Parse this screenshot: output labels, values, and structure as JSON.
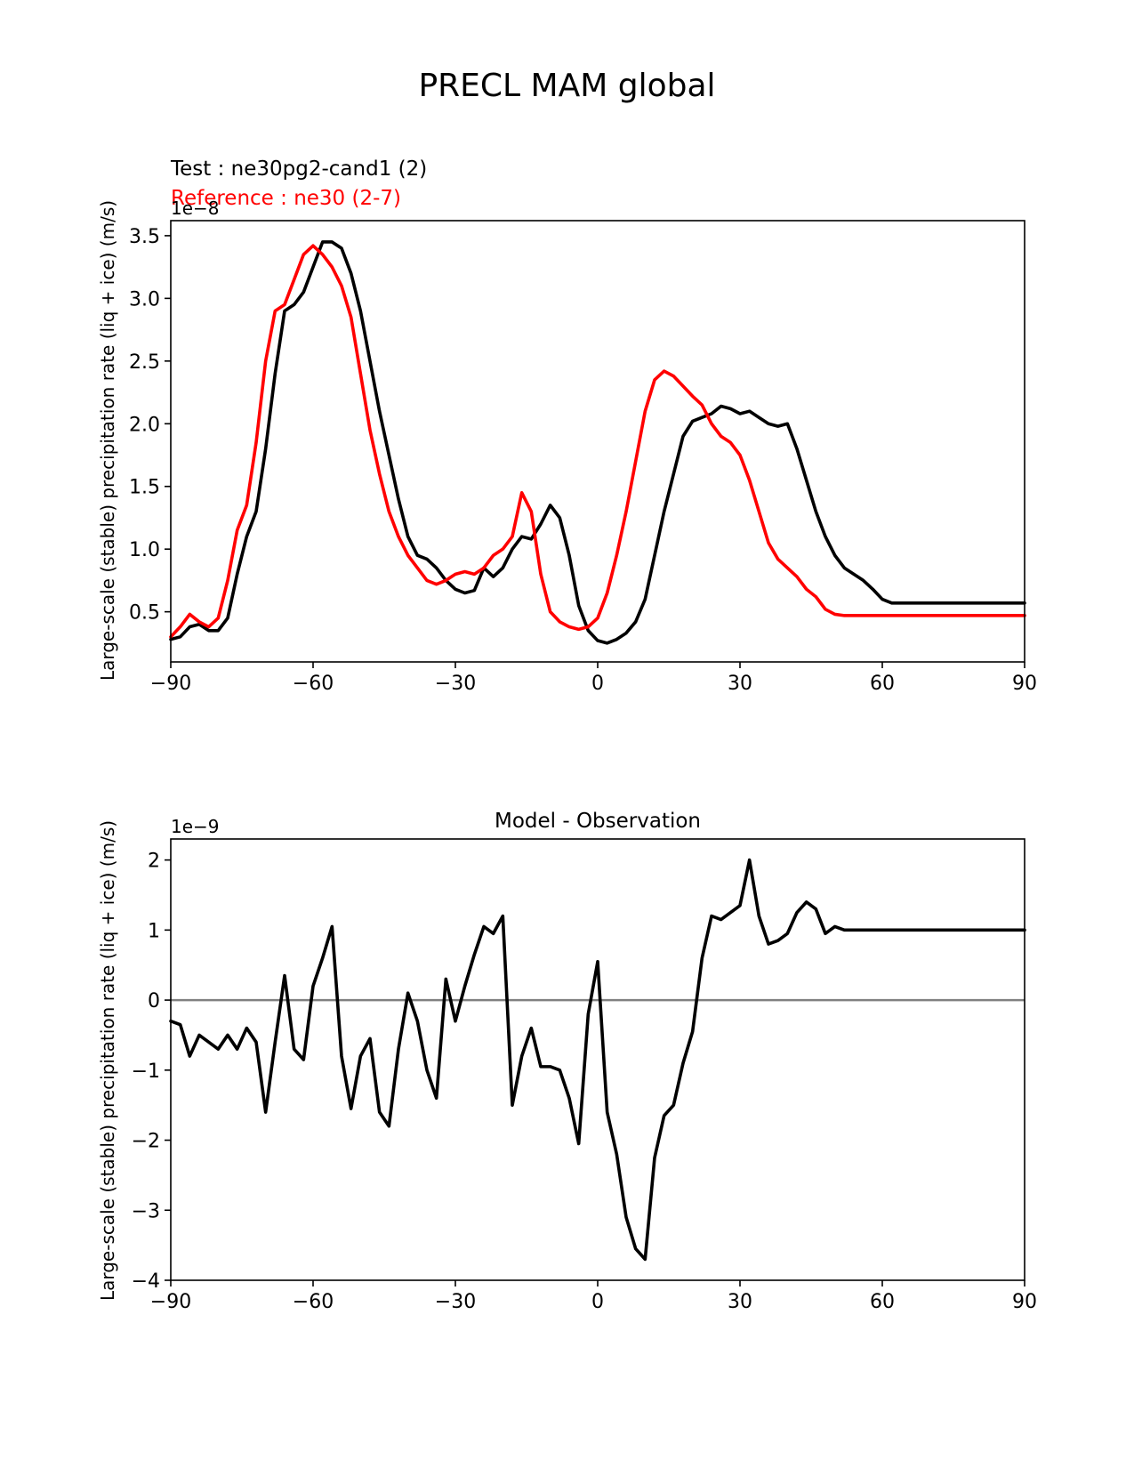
{
  "figure": {
    "title": "PRECL MAM global"
  },
  "chart_data": [
    {
      "type": "line",
      "legend_test": "Test : ne30pg2-cand1 (2)",
      "legend_ref": "Reference : ne30 (2-7)",
      "ylabel": "Large-scale (stable) precipitation rate (liq + ice) (m/s)",
      "offset_label": "1e−8",
      "xlim": [
        -90,
        90
      ],
      "ylim": [
        0.1,
        3.62
      ],
      "xticks": [
        -90,
        -60,
        -30,
        0,
        30,
        60,
        90
      ],
      "xtick_labels": [
        "−90",
        "−60",
        "−30",
        "0",
        "30",
        "60",
        "90"
      ],
      "yticks": [
        0.5,
        1.0,
        1.5,
        2.0,
        2.5,
        3.0,
        3.5
      ],
      "ytick_labels": [
        "0.5",
        "1.0",
        "1.5",
        "2.0",
        "2.5",
        "3.0",
        "3.5"
      ],
      "series": [
        {
          "name": "Test : ne30pg2-cand1 (2)",
          "color": "#000000",
          "x": [
            -90,
            -88,
            -86,
            -84,
            -82,
            -80,
            -78,
            -76,
            -74,
            -72,
            -70,
            -68,
            -66,
            -64,
            -62,
            -60,
            -58,
            -56,
            -54,
            -52,
            -50,
            -48,
            -46,
            -44,
            -42,
            -40,
            -38,
            -36,
            -34,
            -32,
            -30,
            -28,
            -26,
            -24,
            -22,
            -20,
            -18,
            -16,
            -14,
            -12,
            -10,
            -8,
            -6,
            -4,
            -2,
            0,
            2,
            4,
            6,
            8,
            10,
            12,
            14,
            16,
            18,
            20,
            22,
            24,
            26,
            28,
            30,
            32,
            34,
            36,
            38,
            40,
            42,
            44,
            46,
            48,
            50,
            52,
            54,
            56,
            58,
            60,
            62,
            64,
            66,
            68,
            70,
            72,
            74,
            76,
            78,
            80,
            82,
            84,
            86,
            88,
            90
          ],
          "y": [
            0.28,
            0.3,
            0.38,
            0.4,
            0.35,
            0.35,
            0.45,
            0.8,
            1.1,
            1.3,
            1.8,
            2.4,
            2.9,
            2.95,
            3.05,
            3.25,
            3.45,
            3.45,
            3.4,
            3.2,
            2.9,
            2.5,
            2.1,
            1.75,
            1.4,
            1.1,
            0.95,
            0.92,
            0.85,
            0.75,
            0.68,
            0.65,
            0.67,
            0.85,
            0.78,
            0.85,
            1.0,
            1.1,
            1.08,
            1.2,
            1.35,
            1.25,
            0.95,
            0.55,
            0.35,
            0.27,
            0.25,
            0.28,
            0.33,
            0.42,
            0.6,
            0.95,
            1.3,
            1.6,
            1.9,
            2.02,
            2.05,
            2.08,
            2.14,
            2.12,
            2.08,
            2.1,
            2.05,
            2.0,
            1.98,
            2.0,
            1.8,
            1.55,
            1.3,
            1.1,
            0.95,
            0.85,
            0.8,
            0.75,
            0.68,
            0.6,
            0.57,
            0.57,
            0.57,
            0.57,
            0.57,
            0.57,
            0.57,
            0.57,
            0.57,
            0.57,
            0.57,
            0.57,
            0.57,
            0.57,
            0.57
          ]
        },
        {
          "name": "Reference : ne30 (2-7)",
          "color": "#ff0000",
          "x": [
            -90,
            -88,
            -86,
            -84,
            -82,
            -80,
            -78,
            -76,
            -74,
            -72,
            -70,
            -68,
            -66,
            -64,
            -62,
            -60,
            -58,
            -56,
            -54,
            -52,
            -50,
            -48,
            -46,
            -44,
            -42,
            -40,
            -38,
            -36,
            -34,
            -32,
            -30,
            -28,
            -26,
            -24,
            -22,
            -20,
            -18,
            -16,
            -14,
            -12,
            -10,
            -8,
            -6,
            -4,
            -2,
            0,
            2,
            4,
            6,
            8,
            10,
            12,
            14,
            16,
            18,
            20,
            22,
            24,
            26,
            28,
            30,
            32,
            34,
            36,
            38,
            40,
            42,
            44,
            46,
            48,
            50,
            52,
            54,
            56,
            58,
            60,
            62,
            64,
            66,
            68,
            70,
            72,
            74,
            76,
            78,
            80,
            82,
            84,
            86,
            88,
            90
          ],
          "y": [
            0.3,
            0.38,
            0.48,
            0.42,
            0.38,
            0.45,
            0.75,
            1.15,
            1.35,
            1.85,
            2.5,
            2.9,
            2.95,
            3.15,
            3.35,
            3.42,
            3.35,
            3.25,
            3.1,
            2.85,
            2.4,
            1.95,
            1.6,
            1.3,
            1.1,
            0.95,
            0.85,
            0.75,
            0.72,
            0.75,
            0.8,
            0.82,
            0.8,
            0.85,
            0.95,
            1.0,
            1.1,
            1.45,
            1.3,
            0.8,
            0.5,
            0.42,
            0.38,
            0.36,
            0.38,
            0.45,
            0.65,
            0.95,
            1.3,
            1.7,
            2.1,
            2.35,
            2.42,
            2.38,
            2.3,
            2.22,
            2.15,
            2.0,
            1.9,
            1.85,
            1.75,
            1.55,
            1.3,
            1.05,
            0.92,
            0.85,
            0.78,
            0.68,
            0.62,
            0.52,
            0.48,
            0.47,
            0.47,
            0.47,
            0.47,
            0.47,
            0.47,
            0.47,
            0.47,
            0.47,
            0.47,
            0.47,
            0.47,
            0.47,
            0.47,
            0.47,
            0.47,
            0.47,
            0.47,
            0.47,
            0.47
          ]
        }
      ]
    },
    {
      "type": "line",
      "title": "Model - Observation",
      "ylabel": "Large-scale (stable) precipitation rate (liq + ice) (m/s)",
      "offset_label": "1e−9",
      "xlim": [
        -90,
        90
      ],
      "ylim": [
        -4.0,
        2.3
      ],
      "xticks": [
        -90,
        -60,
        -30,
        0,
        30,
        60,
        90
      ],
      "xtick_labels": [
        "−90",
        "−60",
        "−30",
        "0",
        "30",
        "60",
        "90"
      ],
      "yticks": [
        -4,
        -3,
        -2,
        -1,
        0,
        1,
        2
      ],
      "ytick_labels": [
        "−4",
        "−3",
        "−2",
        "−1",
        "0",
        "1",
        "2"
      ],
      "zero_line": {
        "value": 0,
        "color": "#808080"
      },
      "series": [
        {
          "name": "Model - Observation",
          "color": "#000000",
          "x": [
            -90,
            -88,
            -86,
            -84,
            -82,
            -80,
            -78,
            -76,
            -74,
            -72,
            -70,
            -68,
            -66,
            -64,
            -62,
            -60,
            -58,
            -56,
            -54,
            -52,
            -50,
            -48,
            -46,
            -44,
            -42,
            -40,
            -38,
            -36,
            -34,
            -32,
            -30,
            -28,
            -26,
            -24,
            -22,
            -20,
            -18,
            -16,
            -14,
            -12,
            -10,
            -8,
            -6,
            -4,
            -2,
            0,
            2,
            4,
            6,
            8,
            10,
            12,
            14,
            16,
            18,
            20,
            22,
            24,
            26,
            28,
            30,
            32,
            34,
            36,
            38,
            40,
            42,
            44,
            46,
            48,
            50,
            52,
            54,
            56,
            58,
            60,
            62,
            64,
            66,
            68,
            70,
            72,
            74,
            76,
            78,
            80,
            82,
            84,
            86,
            88,
            90
          ],
          "y": [
            -0.3,
            -0.35,
            -0.8,
            -0.5,
            -0.6,
            -0.7,
            -0.5,
            -0.7,
            -0.4,
            -0.6,
            -1.6,
            -0.6,
            0.35,
            -0.7,
            -0.85,
            0.2,
            0.6,
            1.05,
            -0.8,
            -1.55,
            -0.8,
            -0.55,
            -1.6,
            -1.8,
            -0.7,
            0.1,
            -0.3,
            -1.0,
            -1.4,
            0.3,
            -0.3,
            0.2,
            0.65,
            1.05,
            0.95,
            1.2,
            -1.5,
            -0.8,
            -0.4,
            -0.95,
            -0.95,
            -1.0,
            -1.4,
            -2.05,
            -0.2,
            0.55,
            -1.6,
            -2.2,
            -3.1,
            -3.55,
            -3.7,
            -2.25,
            -1.65,
            -1.5,
            -0.9,
            -0.45,
            0.6,
            1.2,
            1.15,
            1.25,
            1.35,
            2.0,
            1.2,
            0.8,
            0.85,
            0.95,
            1.25,
            1.4,
            1.3,
            0.95,
            1.05,
            1.0,
            1.0,
            1.0,
            1.0,
            1.0,
            1.0,
            1.0,
            1.0,
            1.0,
            1.0,
            1.0,
            1.0,
            1.0,
            1.0,
            1.0,
            1.0,
            1.0,
            1.0,
            1.0,
            1.0
          ]
        }
      ]
    }
  ]
}
